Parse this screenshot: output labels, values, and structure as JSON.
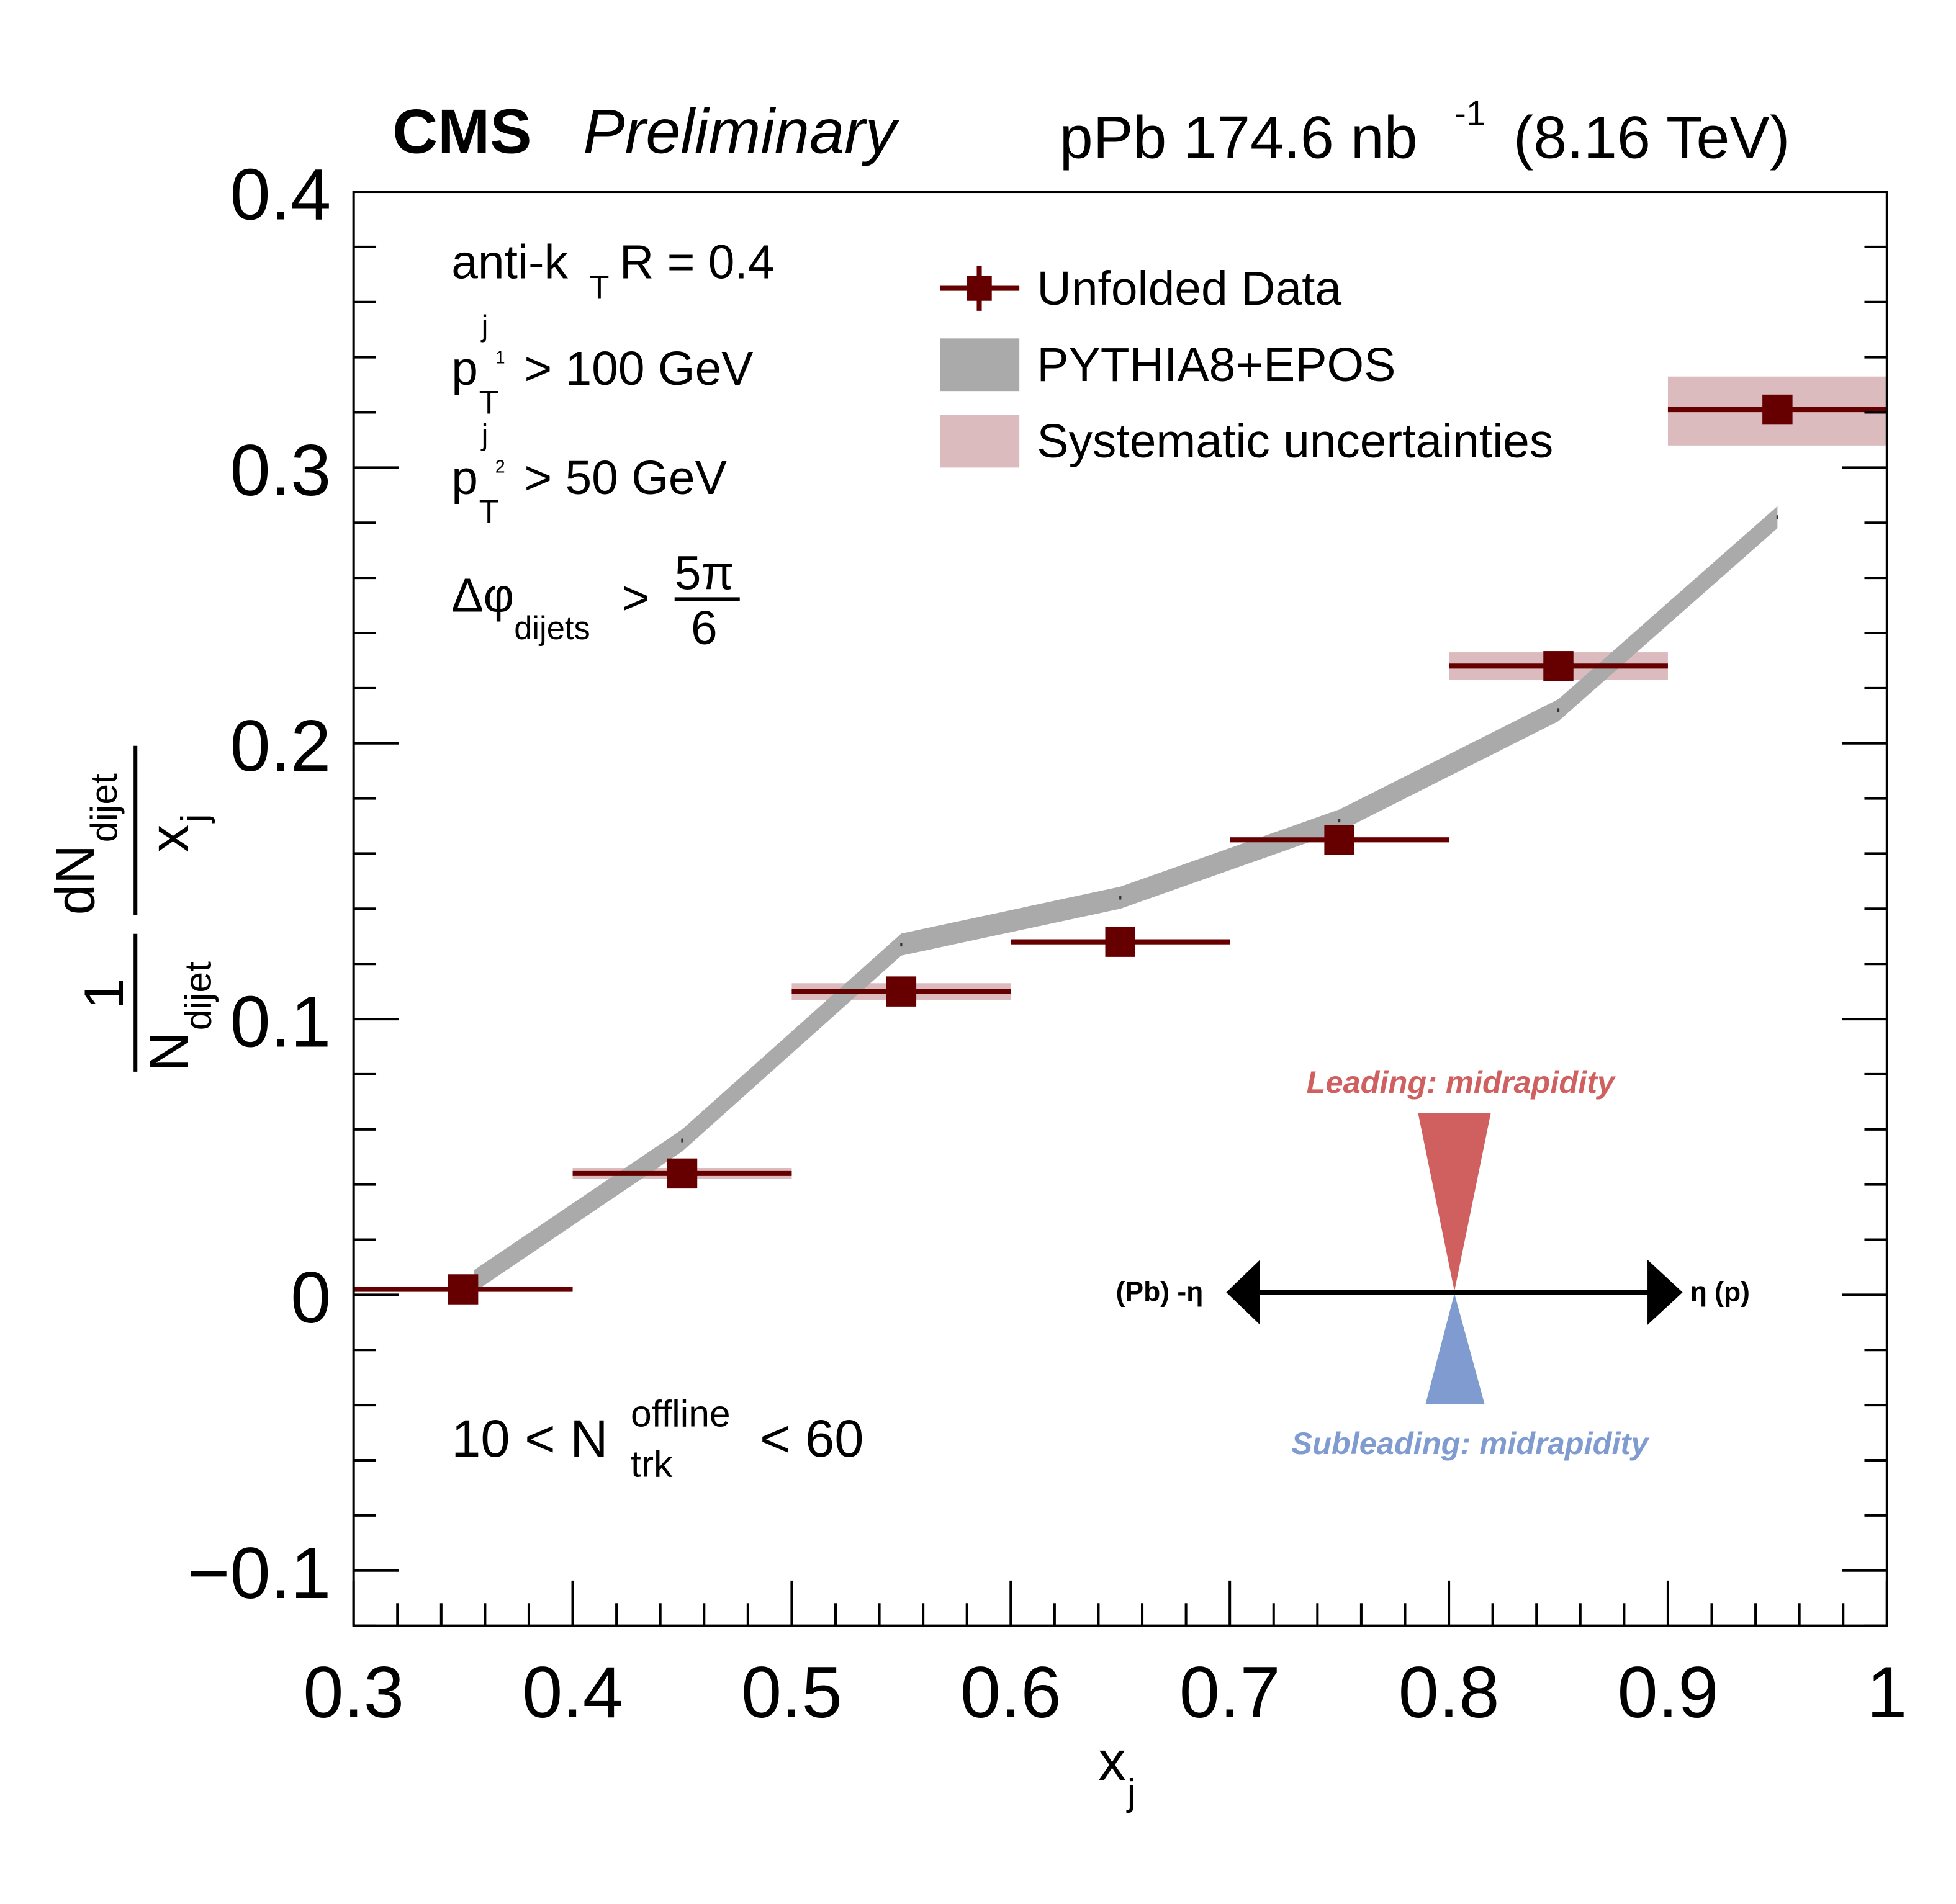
{
  "header": {
    "experiment": "CMS",
    "status": "Preliminary",
    "lumi_prefix": "pPb 174.6 nb",
    "lumi_exp": "-1",
    "energy": "(8.16 TeV)"
  },
  "annotations": {
    "algo_main": "anti-k",
    "algo_sub": "T",
    "algo_rest": " R = 0.4",
    "pt1_p": "p",
    "pt1_sub": "T",
    "pt1_sup": "j",
    "pt1_supsub": "1",
    "pt1_rest": "> 100 GeV",
    "pt2_p": "p",
    "pt2_sub": "T",
    "pt2_sup": "j",
    "pt2_supsub": "2",
    "pt2_rest": "> 50 GeV",
    "dphi_main": "Δφ",
    "dphi_sub": "dijets",
    "dphi_gt": ">",
    "dphi_num": "5π",
    "dphi_den": "6",
    "ntrk_left": "10 < N",
    "ntrk_sup": "offline",
    "ntrk_sub": "trk",
    "ntrk_right": "< 60"
  },
  "diagram": {
    "leading": "Leading: midrapidity",
    "subleading": "Subleading: midrapidity",
    "left_label": "(Pb) -η",
    "right_label": "η (p)",
    "leading_color": "#d05f60",
    "subleading_color": "#7f9bd0"
  },
  "chart_data": {
    "type": "line",
    "title": "",
    "xlabel": "x",
    "xlabel_sub": "j",
    "ylabel": {
      "frac1_num": "1",
      "frac1_den": "N",
      "frac1_den_sub": "dijet",
      "frac2_num": "dN",
      "frac2_num_sub": "dijet",
      "frac2_den": "x",
      "frac2_den_sub": "j"
    },
    "xlim": [
      0.3,
      1.0
    ],
    "ylim": [
      -0.12,
      0.4
    ],
    "x_ticks": [
      "0.3",
      "0.4",
      "0.5",
      "0.6",
      "0.7",
      "0.8",
      "0.9",
      "1"
    ],
    "y_ticks": [
      "−0.1",
      "0",
      "0.1",
      "0.2",
      "0.3",
      "0.4"
    ],
    "y_tick_values": [
      -0.1,
      0,
      0.1,
      0.2,
      0.3,
      0.4
    ],
    "x_tick_values": [
      0.3,
      0.4,
      0.5,
      0.6,
      0.7,
      0.8,
      0.9,
      1.0
    ],
    "grid": false,
    "legend_position": "top-right",
    "legend": [
      "Unfolded Data",
      "PYTHIA8+EPOS",
      "Systematic uncertainties"
    ],
    "colors": {
      "data": "#660000",
      "mc": "#aaaaaa",
      "syst": "#dbbbbd"
    },
    "series": [
      {
        "name": "Unfolded Data",
        "x": [
          0.35,
          0.45,
          0.55,
          0.65,
          0.75,
          0.85,
          0.95
        ],
        "x_err": 0.05,
        "y": [
          0.002,
          0.044,
          0.11,
          0.128,
          0.165,
          0.228,
          0.321
        ],
        "syst_low": [
          0.001,
          0.042,
          0.107,
          0.127,
          0.164,
          0.223,
          0.308
        ],
        "syst_high": [
          0.003,
          0.046,
          0.113,
          0.129,
          0.166,
          0.233,
          0.333
        ]
      },
      {
        "name": "PYTHIA8+EPOS",
        "x": [
          0.355,
          0.45,
          0.55,
          0.65,
          0.75,
          0.85,
          0.95
        ],
        "y": [
          0.005,
          0.056,
          0.127,
          0.144,
          0.172,
          0.212,
          0.282
        ],
        "band_halfwidth": 0.004
      }
    ]
  }
}
